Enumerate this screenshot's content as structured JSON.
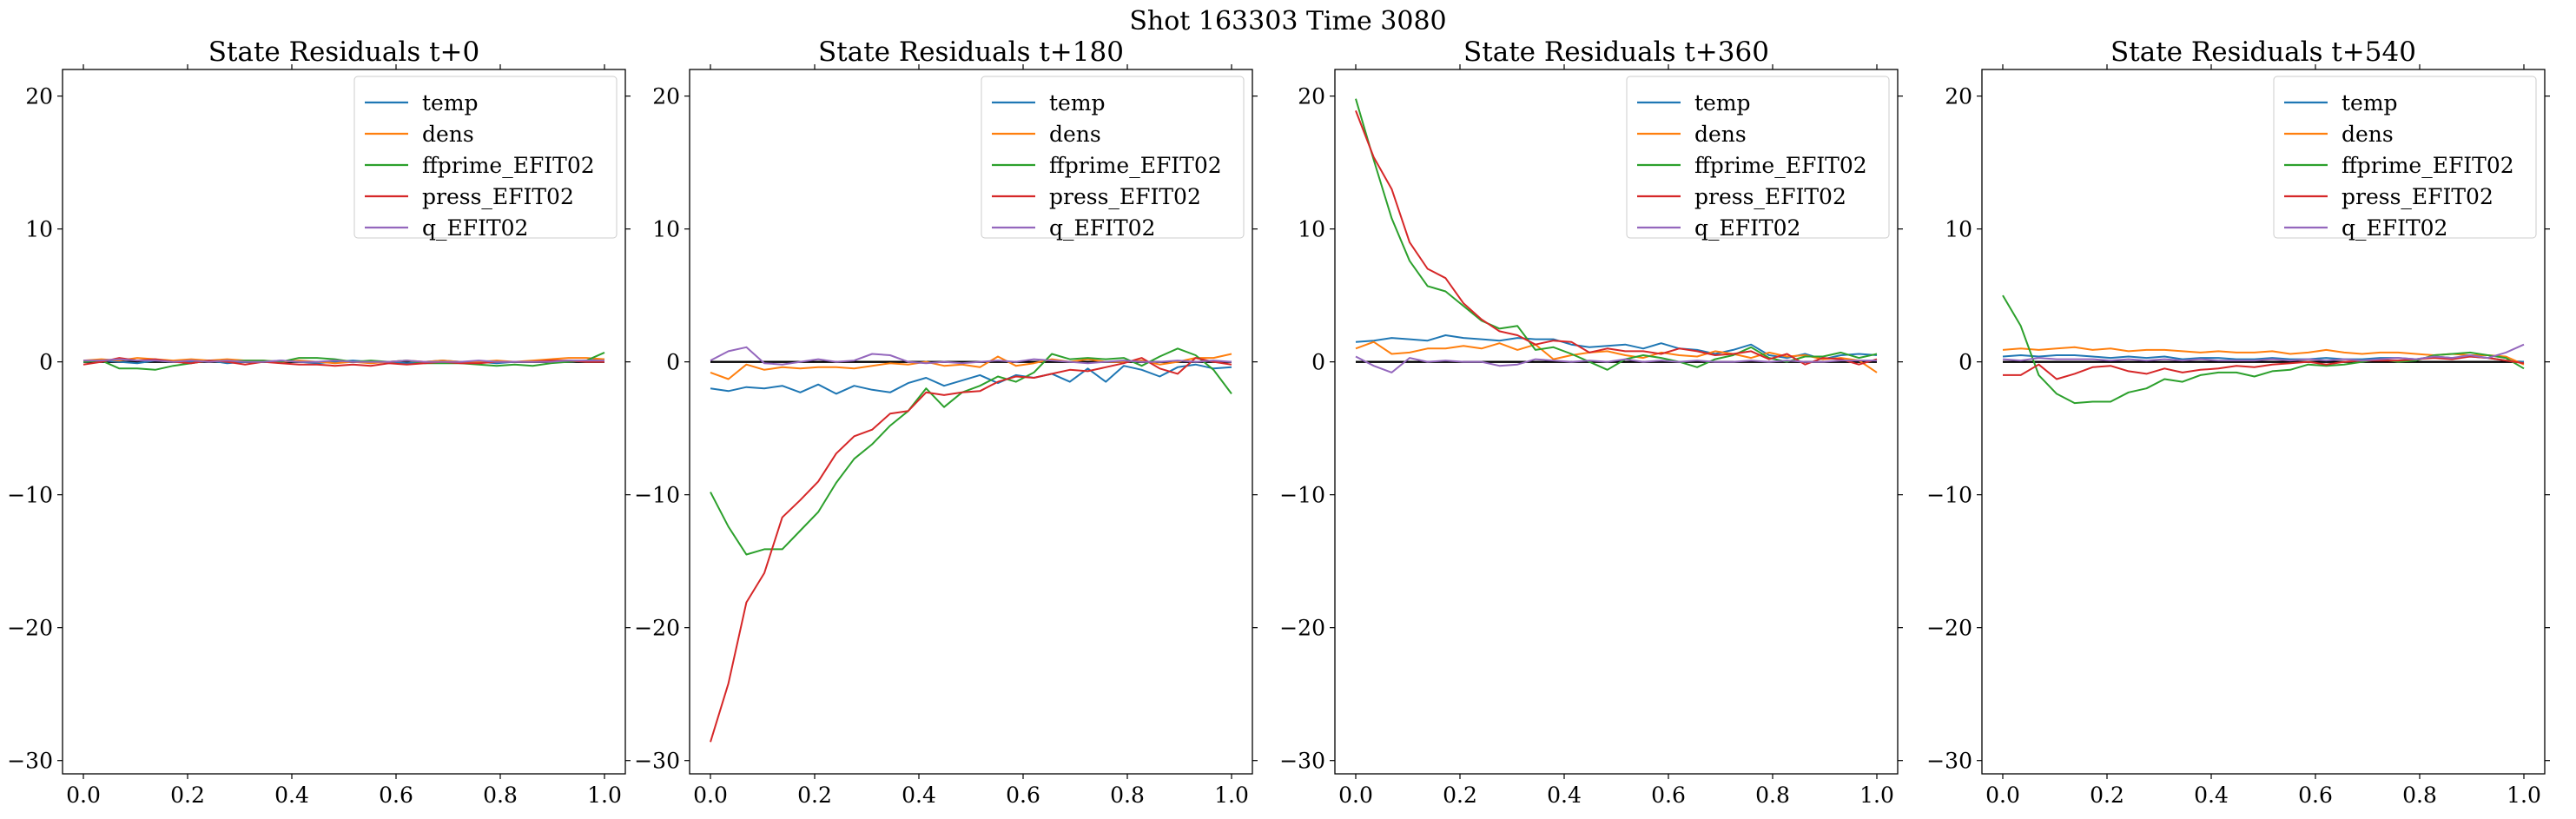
{
  "figure": {
    "suptitle": "Shot 163303   Time 3080"
  },
  "legend_entries": [
    {
      "name": "temp",
      "color": "#1f77b4"
    },
    {
      "name": "dens",
      "color": "#ff7f0e"
    },
    {
      "name": "ffprime_EFIT02",
      "color": "#2ca02c"
    },
    {
      "name": "press_EFIT02",
      "color": "#d62728"
    },
    {
      "name": "q_EFIT02",
      "color": "#9467bd"
    }
  ],
  "zero_line_color": "#000000",
  "chart_data": [
    {
      "type": "line",
      "title": "State Residuals t+0",
      "xlim": [
        -0.04,
        1.04
      ],
      "ylim": [
        -31,
        22
      ],
      "xticks": [
        0.0,
        0.2,
        0.4,
        0.6,
        0.8,
        1.0
      ],
      "xtick_labels": [
        "0.0",
        "0.2",
        "0.4",
        "0.6",
        "0.8",
        "1.0"
      ],
      "yticks": [
        -30,
        -20,
        -10,
        0,
        10,
        20
      ],
      "ytick_labels": [
        "−30",
        "−20",
        "−10",
        "0",
        "10",
        "20"
      ],
      "legend": "top-right",
      "x": [
        0.0,
        0.0345,
        0.069,
        0.1034,
        0.1379,
        0.1724,
        0.2069,
        0.2414,
        0.2759,
        0.3103,
        0.3448,
        0.3793,
        0.4138,
        0.4483,
        0.4828,
        0.5172,
        0.5517,
        0.5862,
        0.6207,
        0.6552,
        0.6897,
        0.7241,
        0.7586,
        0.7931,
        0.8276,
        0.8621,
        0.8966,
        0.931,
        0.9655,
        1.0
      ],
      "series": [
        {
          "name": "temp",
          "values": [
            0.0,
            0.1,
            0.0,
            -0.1,
            0.1,
            0.0,
            0.0,
            0.1,
            -0.1,
            0.0,
            0.0,
            0.1,
            0.0,
            -0.1,
            0.0,
            0.1,
            0.0,
            0.0,
            -0.1,
            0.0,
            0.1,
            0.0,
            0.0,
            -0.1,
            0.0,
            0.0,
            0.1,
            0.0,
            0.1,
            0.2
          ]
        },
        {
          "name": "dens",
          "values": [
            0.1,
            0.2,
            0.1,
            0.3,
            0.2,
            0.1,
            0.2,
            0.1,
            0.2,
            0.1,
            0.1,
            0.0,
            0.1,
            0.0,
            -0.1,
            0.0,
            -0.1,
            0.0,
            0.1,
            0.0,
            0.1,
            0.0,
            0.0,
            0.1,
            0.0,
            0.1,
            0.2,
            0.3,
            0.3,
            0.2
          ]
        },
        {
          "name": "ffprime_EFIT02",
          "values": [
            0.0,
            0.1,
            -0.5,
            -0.5,
            -0.6,
            -0.3,
            -0.1,
            0.1,
            0.0,
            0.1,
            0.1,
            0.0,
            0.3,
            0.3,
            0.2,
            0.0,
            0.1,
            0.0,
            0.1,
            -0.1,
            -0.1,
            -0.1,
            -0.2,
            -0.3,
            -0.2,
            -0.3,
            -0.1,
            0.0,
            0.1,
            0.7
          ]
        },
        {
          "name": "press_EFIT02",
          "values": [
            -0.2,
            0.0,
            0.3,
            0.1,
            0.2,
            0.0,
            -0.1,
            0.1,
            0.0,
            -0.2,
            0.0,
            -0.1,
            -0.2,
            -0.2,
            -0.3,
            -0.2,
            -0.3,
            -0.1,
            -0.2,
            -0.1,
            0.0,
            -0.1,
            -0.1,
            0.0,
            0.0,
            0.0,
            0.1,
            0.1,
            0.0,
            0.0
          ]
        },
        {
          "name": "q_EFIT02",
          "values": [
            0.1,
            0.1,
            0.2,
            0.1,
            0.1,
            0.0,
            0.1,
            0.0,
            0.1,
            0.0,
            0.0,
            0.1,
            0.0,
            0.0,
            0.1,
            0.0,
            0.0,
            0.0,
            0.1,
            0.0,
            0.0,
            0.0,
            0.1,
            0.0,
            0.0,
            0.0,
            0.0,
            0.1,
            0.1,
            0.1
          ]
        }
      ]
    },
    {
      "type": "line",
      "title": "State Residuals t+180",
      "xlim": [
        -0.04,
        1.04
      ],
      "ylim": [
        -31,
        22
      ],
      "xticks": [
        0.0,
        0.2,
        0.4,
        0.6,
        0.8,
        1.0
      ],
      "xtick_labels": [
        "0.0",
        "0.2",
        "0.4",
        "0.6",
        "0.8",
        "1.0"
      ],
      "yticks": [
        -30,
        -20,
        -10,
        0,
        10,
        20
      ],
      "ytick_labels": [
        "−30",
        "−20",
        "−10",
        "0",
        "10",
        "20"
      ],
      "legend": "top-right",
      "x": [
        0.0,
        0.0345,
        0.069,
        0.1034,
        0.1379,
        0.1724,
        0.2069,
        0.2414,
        0.2759,
        0.3103,
        0.3448,
        0.3793,
        0.4138,
        0.4483,
        0.4828,
        0.5172,
        0.5517,
        0.5862,
        0.6207,
        0.6552,
        0.6897,
        0.7241,
        0.7586,
        0.7931,
        0.8276,
        0.8621,
        0.8966,
        0.931,
        0.9655,
        1.0
      ],
      "series": [
        {
          "name": "temp",
          "values": [
            -2.0,
            -2.2,
            -1.9,
            -2.0,
            -1.8,
            -2.3,
            -1.7,
            -2.4,
            -1.8,
            -2.1,
            -2.3,
            -1.6,
            -1.2,
            -1.8,
            -1.4,
            -1.0,
            -1.6,
            -1.0,
            -1.2,
            -0.9,
            -1.5,
            -0.5,
            -1.5,
            -0.3,
            -0.6,
            -1.1,
            -0.4,
            -0.2,
            -0.5,
            -0.4
          ]
        },
        {
          "name": "dens",
          "values": [
            -0.8,
            -1.3,
            -0.2,
            -0.6,
            -0.4,
            -0.5,
            -0.4,
            -0.4,
            -0.5,
            -0.3,
            -0.1,
            -0.2,
            0.0,
            -0.3,
            -0.2,
            -0.4,
            0.4,
            -0.3,
            -0.1,
            0.2,
            0.0,
            0.2,
            0.0,
            0.0,
            0.1,
            -0.2,
            0.0,
            0.3,
            0.3,
            0.6
          ]
        },
        {
          "name": "ffprime_EFIT02",
          "values": [
            -9.8,
            -12.4,
            -14.5,
            -14.1,
            -14.1,
            -12.7,
            -11.3,
            -9.1,
            -7.3,
            -6.2,
            -4.8,
            -3.7,
            -2.0,
            -3.4,
            -2.3,
            -1.8,
            -1.1,
            -1.5,
            -0.8,
            0.6,
            0.2,
            0.3,
            0.2,
            0.3,
            -0.3,
            0.4,
            1.0,
            0.5,
            -0.6,
            -2.4
          ]
        },
        {
          "name": "press_EFIT02",
          "values": [
            -28.6,
            -24.2,
            -18.1,
            -15.9,
            -11.7,
            -10.4,
            -9.0,
            -6.9,
            -5.6,
            -5.1,
            -3.9,
            -3.7,
            -2.3,
            -2.5,
            -2.3,
            -2.2,
            -1.5,
            -1.1,
            -1.2,
            -0.9,
            -0.6,
            -0.7,
            -0.4,
            -0.1,
            0.3,
            -0.5,
            -0.9,
            0.3,
            0.0,
            -0.2
          ]
        },
        {
          "name": "q_EFIT02",
          "values": [
            0.1,
            0.8,
            1.1,
            -0.1,
            -0.2,
            0.0,
            0.2,
            0.0,
            0.1,
            0.6,
            0.5,
            0.0,
            -0.1,
            0.0,
            -0.1,
            0.0,
            0.1,
            0.0,
            0.2,
            0.1,
            0.0,
            -0.1,
            0.0,
            0.1,
            0.0,
            0.0,
            0.1,
            0.0,
            0.1,
            0.0
          ]
        }
      ]
    },
    {
      "type": "line",
      "title": "State Residuals t+360",
      "xlim": [
        -0.04,
        1.04
      ],
      "ylim": [
        -31,
        22
      ],
      "xticks": [
        0.0,
        0.2,
        0.4,
        0.6,
        0.8,
        1.0
      ],
      "xtick_labels": [
        "0.0",
        "0.2",
        "0.4",
        "0.6",
        "0.8",
        "1.0"
      ],
      "yticks": [
        -30,
        -20,
        -10,
        0,
        10,
        20
      ],
      "ytick_labels": [
        "−30",
        "−20",
        "−10",
        "0",
        "10",
        "20"
      ],
      "legend": "top-right",
      "x": [
        0.0,
        0.0345,
        0.069,
        0.1034,
        0.1379,
        0.1724,
        0.2069,
        0.2414,
        0.2759,
        0.3103,
        0.3448,
        0.3793,
        0.4138,
        0.4483,
        0.4828,
        0.5172,
        0.5517,
        0.5862,
        0.6207,
        0.6552,
        0.6897,
        0.7241,
        0.7586,
        0.7931,
        0.8276,
        0.8621,
        0.8966,
        0.931,
        0.9655,
        1.0
      ],
      "series": [
        {
          "name": "temp",
          "values": [
            1.5,
            1.6,
            1.8,
            1.7,
            1.6,
            2.0,
            1.8,
            1.7,
            1.6,
            1.8,
            1.7,
            1.7,
            1.3,
            1.1,
            1.2,
            1.3,
            1.0,
            1.4,
            1.0,
            0.9,
            0.6,
            0.9,
            1.3,
            0.5,
            0.3,
            0.6,
            0.2,
            0.5,
            0.6,
            0.5
          ]
        },
        {
          "name": "dens",
          "values": [
            1.0,
            1.5,
            0.6,
            0.7,
            1.0,
            1.0,
            1.2,
            1.0,
            1.4,
            0.9,
            1.3,
            0.2,
            0.5,
            0.7,
            0.8,
            0.5,
            0.3,
            0.7,
            0.5,
            0.4,
            0.8,
            0.6,
            0.3,
            0.7,
            0.4,
            0.5,
            0.2,
            0.3,
            0.1,
            -0.8
          ]
        },
        {
          "name": "ffprime_EFIT02",
          "values": [
            19.8,
            15.2,
            10.8,
            7.6,
            5.7,
            5.3,
            4.2,
            3.1,
            2.5,
            2.7,
            0.9,
            1.1,
            0.6,
            0.0,
            -0.6,
            0.2,
            0.5,
            0.3,
            0.0,
            -0.4,
            0.2,
            0.5,
            1.1,
            0.3,
            0.0,
            0.4,
            0.4,
            0.7,
            0.3,
            0.6
          ]
        },
        {
          "name": "press_EFIT02",
          "values": [
            18.9,
            15.4,
            13.0,
            9.0,
            7.0,
            6.3,
            4.4,
            3.2,
            2.3,
            2.0,
            1.3,
            1.6,
            1.5,
            0.7,
            1.0,
            0.8,
            0.8,
            0.6,
            1.0,
            0.8,
            0.5,
            0.6,
            0.8,
            0.2,
            0.6,
            -0.2,
            0.3,
            0.2,
            -0.2,
            0.2
          ]
        },
        {
          "name": "q_EFIT02",
          "values": [
            0.4,
            -0.3,
            -0.8,
            0.3,
            0.0,
            0.1,
            0.0,
            0.0,
            -0.3,
            -0.2,
            0.2,
            0.1,
            0.0,
            0.1,
            0.0,
            0.2,
            0.0,
            0.1,
            0.0,
            0.1,
            0.0,
            0.0,
            0.1,
            0.0,
            0.1,
            0.0,
            0.0,
            0.1,
            0.1,
            0.1
          ]
        }
      ]
    },
    {
      "type": "line",
      "title": "State Residuals t+540",
      "xlim": [
        -0.04,
        1.04
      ],
      "ylim": [
        -31,
        22
      ],
      "xticks": [
        0.0,
        0.2,
        0.4,
        0.6,
        0.8,
        1.0
      ],
      "xtick_labels": [
        "0.0",
        "0.2",
        "0.4",
        "0.6",
        "0.8",
        "1.0"
      ],
      "yticks": [
        -30,
        -20,
        -10,
        0,
        10,
        20
      ],
      "ytick_labels": [
        "−30",
        "−20",
        "−10",
        "0",
        "10",
        "20"
      ],
      "legend": "top-right",
      "x": [
        0.0,
        0.0345,
        0.069,
        0.1034,
        0.1379,
        0.1724,
        0.2069,
        0.2414,
        0.2759,
        0.3103,
        0.3448,
        0.3793,
        0.4138,
        0.4483,
        0.4828,
        0.5172,
        0.5517,
        0.5862,
        0.6207,
        0.6552,
        0.6897,
        0.7241,
        0.7586,
        0.7931,
        0.8276,
        0.8621,
        0.8966,
        0.931,
        0.9655,
        1.0
      ],
      "series": [
        {
          "name": "temp",
          "values": [
            0.4,
            0.5,
            0.4,
            0.5,
            0.5,
            0.4,
            0.3,
            0.4,
            0.3,
            0.4,
            0.2,
            0.3,
            0.3,
            0.2,
            0.2,
            0.3,
            0.2,
            0.2,
            0.3,
            0.2,
            0.2,
            0.3,
            0.3,
            0.2,
            0.4,
            0.3,
            0.4,
            0.3,
            0.1,
            0.0
          ]
        },
        {
          "name": "dens",
          "values": [
            0.9,
            1.0,
            0.9,
            1.0,
            1.1,
            0.9,
            1.0,
            0.8,
            0.9,
            0.9,
            0.8,
            0.7,
            0.8,
            0.7,
            0.7,
            0.8,
            0.6,
            0.7,
            0.9,
            0.7,
            0.6,
            0.7,
            0.7,
            0.6,
            0.5,
            0.6,
            0.5,
            0.5,
            0.4,
            -0.2
          ]
        },
        {
          "name": "ffprime_EFIT02",
          "values": [
            5.0,
            2.7,
            -1.0,
            -2.4,
            -3.1,
            -3.0,
            -3.0,
            -2.3,
            -2.0,
            -1.3,
            -1.5,
            -1.0,
            -0.8,
            -0.8,
            -1.1,
            -0.7,
            -0.6,
            -0.2,
            -0.3,
            -0.2,
            0.0,
            0.2,
            0.0,
            0.1,
            0.5,
            0.6,
            0.7,
            0.5,
            0.3,
            -0.5
          ]
        },
        {
          "name": "press_EFIT02",
          "values": [
            -1.0,
            -1.0,
            -0.2,
            -1.3,
            -0.9,
            -0.4,
            -0.3,
            -0.7,
            -0.9,
            -0.5,
            -0.8,
            -0.6,
            -0.5,
            -0.3,
            -0.4,
            -0.2,
            -0.1,
            0.0,
            -0.2,
            0.0,
            0.1,
            0.1,
            0.1,
            0.2,
            0.3,
            0.2,
            0.4,
            0.3,
            0.1,
            -0.1
          ]
        },
        {
          "name": "q_EFIT02",
          "values": [
            0.2,
            0.1,
            0.3,
            0.2,
            0.2,
            0.2,
            0.1,
            0.2,
            0.1,
            0.2,
            0.1,
            0.2,
            0.1,
            0.1,
            0.1,
            0.2,
            0.1,
            0.2,
            0.1,
            0.2,
            0.1,
            0.2,
            0.3,
            0.2,
            0.4,
            0.3,
            0.5,
            0.3,
            0.7,
            1.3
          ]
        }
      ]
    }
  ]
}
